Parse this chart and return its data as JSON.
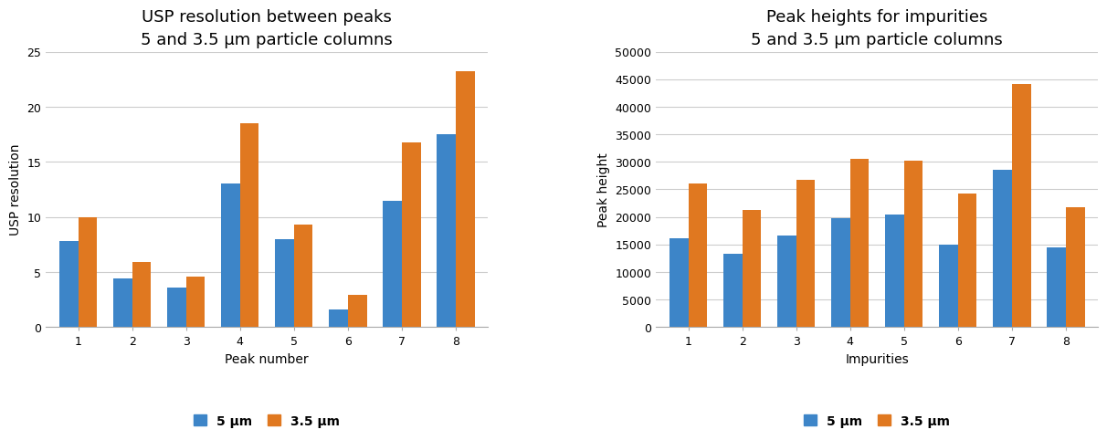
{
  "chart1": {
    "title": "USP resolution between peaks",
    "subtitle": "5 and 3.5 μm particle columns",
    "xlabel": "Peak number",
    "ylabel": "USP resolution",
    "categories": [
      1,
      2,
      3,
      4,
      5,
      6,
      7,
      8
    ],
    "values_5um": [
      7.8,
      4.4,
      3.6,
      13.0,
      8.0,
      1.6,
      11.5,
      17.5
    ],
    "values_35um": [
      10.0,
      5.9,
      4.6,
      18.5,
      9.3,
      2.9,
      16.8,
      23.2
    ],
    "ylim": [
      0,
      25
    ],
    "yticks": [
      0,
      5,
      10,
      15,
      20,
      25
    ]
  },
  "chart2": {
    "title": "Peak heights for impurities",
    "subtitle": "5 and 3.5 μm particle columns",
    "xlabel": "Impurities",
    "ylabel": "Peak height",
    "categories": [
      1,
      2,
      3,
      4,
      5,
      6,
      7,
      8
    ],
    "values_5um": [
      16200,
      13300,
      16700,
      19700,
      20500,
      15000,
      28500,
      14400
    ],
    "values_35um": [
      26000,
      21200,
      26800,
      30500,
      30200,
      24200,
      44200,
      21700
    ],
    "ylim": [
      0,
      50000
    ],
    "yticks": [
      0,
      5000,
      10000,
      15000,
      20000,
      25000,
      30000,
      35000,
      40000,
      45000,
      50000
    ]
  },
  "color_5um": "#3d85c8",
  "color_35um": "#e07820",
  "legend_label_5um": "5 μm",
  "legend_label_35um": "3.5 μm",
  "background_color": "#ffffff",
  "grid_color": "#cccccc",
  "title_fontsize": 13,
  "subtitle_fontsize": 10,
  "axis_label_fontsize": 10,
  "tick_fontsize": 9,
  "legend_fontsize": 10,
  "bar_width": 0.35
}
